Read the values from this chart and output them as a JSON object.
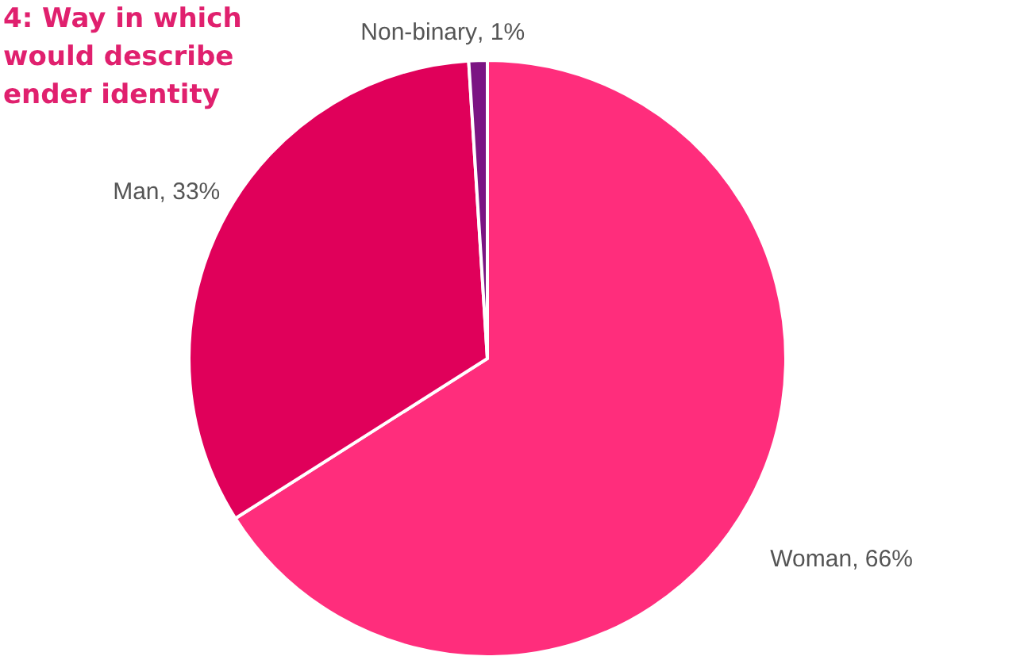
{
  "chart_data": {
    "type": "pie",
    "title": "4: Way in which\nwould describe\nender identity",
    "categories": [
      "Woman",
      "Man",
      "Non-binary"
    ],
    "values": [
      66,
      33,
      1
    ],
    "colors": [
      "#ff2d7c",
      "#e0005a",
      "#7b1583"
    ],
    "value_labels": [
      ", 66%",
      ", 33%",
      ", 1%"
    ]
  }
}
